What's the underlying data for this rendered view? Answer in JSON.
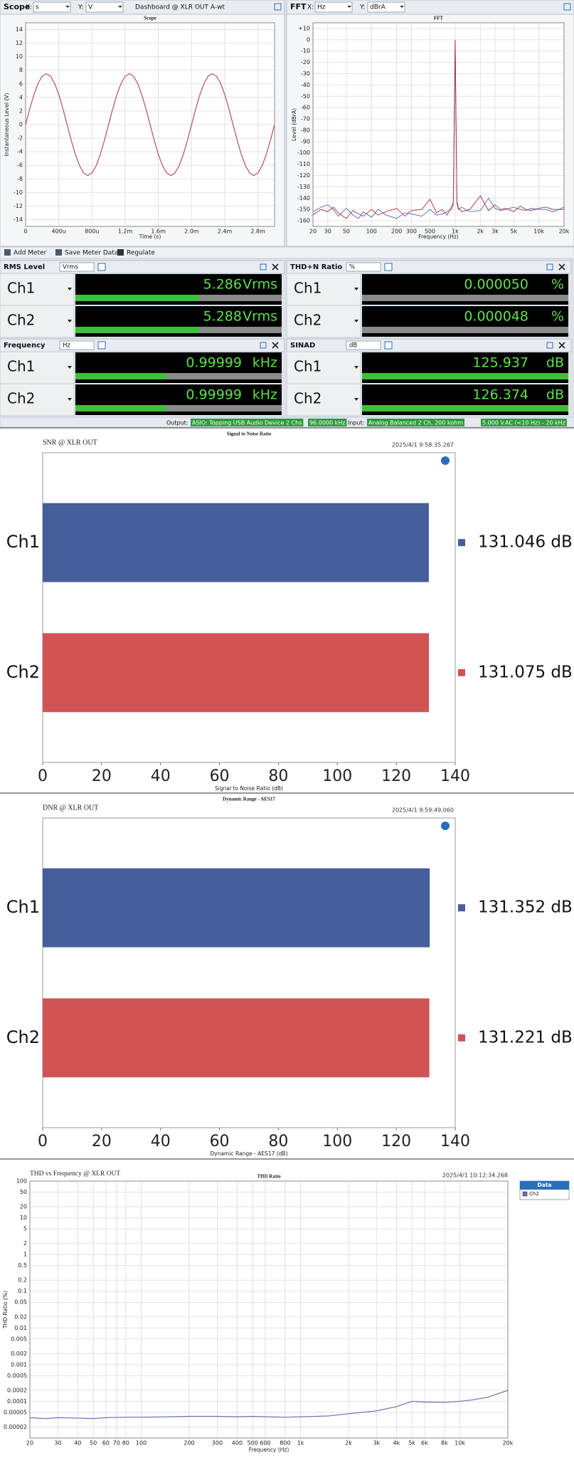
{
  "scope_header": {
    "title": "Scope",
    "x_label": "X:",
    "x_unit": "s",
    "y_label": "Y:",
    "y_unit": "V",
    "dashboard": "Dashboard @ XLR OUT A-wt"
  },
  "fft_header": {
    "title": "FFT",
    "x_label": "X:",
    "x_unit": "Hz",
    "y_label": "Y:",
    "y_unit": "dBrA"
  },
  "toolbar": [
    "Add Meter",
    "Save Meter Data",
    "Regulate"
  ],
  "meters": [
    {
      "name": "RMS Level",
      "unit": "Vrms",
      "rows": [
        {
          "channel": "Ch1",
          "value": "5.286",
          "unit": "Vrms"
        },
        {
          "channel": "Ch2",
          "value": "5.288",
          "unit": "Vrms"
        }
      ]
    },
    {
      "name": "THD+N Ratio",
      "unit": "%",
      "rows": [
        {
          "channel": "Ch1",
          "value": "0.000050",
          "unit": "%"
        },
        {
          "channel": "Ch2",
          "value": "0.000048",
          "unit": "%"
        }
      ]
    },
    {
      "name": "Frequency",
      "unit": "Hz",
      "rows": [
        {
          "channel": "Ch1",
          "value": "0.99999",
          "unit": "kHz"
        },
        {
          "channel": "Ch2",
          "value": "0.99999",
          "unit": "kHz"
        }
      ]
    },
    {
      "name": "SINAD",
      "unit": "dB",
      "rows": [
        {
          "channel": "Ch1",
          "value": "125.937",
          "unit": "dB"
        },
        {
          "channel": "Ch2",
          "value": "126.374",
          "unit": "dB"
        }
      ]
    }
  ],
  "status": {
    "output_label": "Output:",
    "output": "ASIO: Topping USB Audio Device 2 Chs",
    "output_rate": "96.0000 kHz",
    "input_label": "Input:",
    "input": "Analog Balanced 2 Ch, 200 kohm",
    "input_range": "5.000 Vrms",
    "input_filter": "AC (<10 Hz) - 20 kHz"
  },
  "chart_data": [
    {
      "type": "line",
      "title": "Scope",
      "x_label": "Time (s)",
      "y_label": "Instantaneous Level (V)",
      "color": "#b5505e",
      "grid": true,
      "x": [
        0,
        5e-05,
        0.0001,
        0.00015,
        0.0002,
        0.00025,
        0.0003,
        0.00035,
        0.0004,
        0.00045,
        0.0005,
        0.00055,
        0.0006,
        0.00065,
        0.0007,
        0.00075,
        0.0008,
        0.00085,
        0.0009,
        0.00095,
        0.001,
        0.00105,
        0.0011,
        0.00115,
        0.0012,
        0.00125,
        0.0013,
        0.00135,
        0.0014,
        0.00145,
        0.0015,
        0.00155,
        0.0016,
        0.00165,
        0.0017,
        0.00175,
        0.0018,
        0.00185,
        0.0019,
        0.00195,
        0.002,
        0.00205,
        0.0021,
        0.00215,
        0.0022,
        0.00225,
        0.0023,
        0.00235,
        0.0024,
        0.00245,
        0.0025,
        0.00255,
        0.0026,
        0.00265,
        0.0027,
        0.00275,
        0.0028,
        0.00285,
        0.0029,
        0.00295,
        0.003
      ],
      "values": [
        0,
        2.32,
        4.41,
        6.07,
        7.13,
        7.5,
        7.13,
        6.07,
        4.41,
        2.32,
        0,
        -2.32,
        -4.41,
        -6.07,
        -7.13,
        -7.5,
        -7.13,
        -6.07,
        -4.41,
        -2.32,
        0,
        2.32,
        4.41,
        6.07,
        7.13,
        7.5,
        7.13,
        6.07,
        4.41,
        2.32,
        0,
        -2.32,
        -4.41,
        -6.07,
        -7.13,
        -7.5,
        -7.13,
        -6.07,
        -4.41,
        -2.32,
        0,
        2.32,
        4.41,
        6.07,
        7.13,
        7.5,
        7.13,
        6.07,
        4.41,
        2.32,
        0,
        -2.32,
        -4.41,
        -6.07,
        -7.13,
        -7.5,
        -7.13,
        -6.07,
        -4.41,
        -2.32,
        0
      ],
      "xlim": [
        0,
        0.003
      ],
      "ylim": [
        -15,
        15
      ],
      "xticks": [
        0,
        {
          "value": 0.0004,
          "label": "400u"
        },
        {
          "value": 0.0008,
          "label": "800u"
        },
        {
          "value": 0.0012,
          "label": "1.2m"
        },
        {
          "value": 0.0016,
          "label": "1.6m"
        },
        {
          "value": 0.002,
          "label": "2.0m"
        },
        {
          "value": 0.0024,
          "label": "2.4m"
        },
        {
          "value": 0.0028,
          "label": "2.8m"
        }
      ],
      "yticks": [
        14,
        12,
        10,
        8,
        6,
        4,
        2,
        0,
        -2,
        -4,
        -6,
        -8,
        -10,
        -12,
        -14
      ]
    },
    {
      "type": "line",
      "title": "FFT",
      "x_label": "Frequency (Hz)",
      "y_label": "Level (dBrA)",
      "xscale": "log",
      "grid": true,
      "x": [
        20,
        25,
        30,
        35,
        40,
        50,
        60,
        70,
        80,
        100,
        120,
        150,
        200,
        250,
        300,
        400,
        500,
        600,
        700,
        800,
        900,
        950,
        1000,
        1050,
        1100,
        1200,
        1500,
        2000,
        2500,
        3000,
        3500,
        4000,
        5000,
        6000,
        7000,
        8000,
        10000,
        12000,
        15000,
        20000
      ],
      "series": [
        {
          "color": "#4a64b8",
          "values": [
            -152,
            -148,
            -146,
            -150,
            -156,
            -149,
            -155,
            -158,
            -152,
            -157,
            -150,
            -155,
            -158,
            -153,
            -154,
            -156,
            -150,
            -155,
            -154,
            -152,
            -150,
            -146,
            0,
            -145,
            -150,
            -148,
            -152,
            -151,
            -140,
            -149,
            -151,
            -150,
            -148,
            -150,
            -151,
            -149,
            -150,
            -150,
            -152,
            -148
          ]
        },
        {
          "color": "#b0303c",
          "values": [
            -155,
            -150,
            -152,
            -148,
            -153,
            -158,
            -151,
            -154,
            -156,
            -150,
            -155,
            -152,
            -149,
            -156,
            -151,
            -150,
            -141,
            -153,
            -150,
            -155,
            -148,
            -144,
            0,
            -143,
            -149,
            -152,
            -150,
            -138,
            -151,
            -146,
            -150,
            -149,
            -152,
            -147,
            -150,
            -151,
            -149,
            -148,
            -150,
            -150
          ]
        }
      ],
      "xlim": [
        20,
        20000
      ],
      "ylim": [
        -165,
        15
      ],
      "xticks": [
        20,
        30,
        50,
        100,
        200,
        300,
        500,
        {
          "value": 1000,
          "label": "1k"
        },
        {
          "value": 2000,
          "label": "2k"
        },
        {
          "value": 3000,
          "label": "3k"
        },
        {
          "value": 5000,
          "label": "5k"
        },
        {
          "value": 10000,
          "label": "10k"
        },
        {
          "value": 20000,
          "label": "20k"
        }
      ],
      "yticks": [
        {
          "value": 10,
          "label": "+10"
        },
        0,
        -10,
        -20,
        -30,
        -40,
        -50,
        -60,
        -70,
        -80,
        -90,
        -100,
        -110,
        -120,
        -130,
        -140,
        -150,
        -160
      ]
    },
    {
      "type": "bar",
      "title": "Signal to Noise Ratio",
      "subtitle": "SNR @ XLR OUT",
      "timestamp": "2025/4/1 9:58:35.267",
      "x_label": "Signal to Noise Ratio (dB)",
      "grid": false,
      "categories": [
        "Ch1",
        "Ch2"
      ],
      "values": [
        131.046,
        131.075
      ],
      "value_labels": [
        "131.046 dB",
        "131.075 dB"
      ],
      "colors": [
        "#475e9c",
        "#d05454"
      ],
      "xlim": [
        0,
        140
      ],
      "xticks": [
        0,
        20,
        40,
        60,
        80,
        100,
        120,
        140
      ]
    },
    {
      "type": "bar",
      "title": "Dynamic Range - AES17",
      "subtitle": "DNR @ XLR  OUT",
      "timestamp": "2025/4/1 9:59:49.060",
      "x_label": "Dynamic Range - AES17 (dB)",
      "grid": false,
      "categories": [
        "Ch1",
        "Ch2"
      ],
      "values": [
        131.352,
        131.221
      ],
      "value_labels": [
        "131.352 dB",
        "131.221 dB"
      ],
      "colors": [
        "#475e9c",
        "#d05454"
      ],
      "xlim": [
        0,
        140
      ],
      "xticks": [
        0,
        20,
        40,
        60,
        80,
        100,
        120,
        140
      ]
    },
    {
      "type": "line",
      "title": "THD Ratio",
      "subtitle": "THD vs Frequency @ XLR OUT",
      "timestamp": "2025/4/1 10:12:34.268",
      "x_label": "Frequency (Hz)",
      "y_label": "THD Ratio (%)",
      "xscale": "log",
      "yscale": "log",
      "grid": true,
      "legend": "right",
      "legend_title": "Data",
      "x": [
        20,
        25,
        30,
        40,
        50,
        60,
        80,
        100,
        150,
        200,
        300,
        400,
        500,
        600,
        800,
        1000,
        1500,
        2000,
        3000,
        4000,
        5000,
        6000,
        8000,
        10000,
        12000,
        15000,
        20000
      ],
      "series": [
        {
          "name": "Ch2",
          "color": "#6a6cb0",
          "values": [
            3.6e-05,
            3.4e-05,
            3.6e-05,
            3.5e-05,
            3.4e-05,
            3.6e-05,
            3.7e-05,
            3.7e-05,
            3.8e-05,
            3.9e-05,
            3.9e-05,
            3.8e-05,
            3.9e-05,
            3.8e-05,
            3.7e-05,
            3.8e-05,
            4e-05,
            4.6e-05,
            5.5e-05,
            7.2e-05,
            0.0001,
            9.6e-05,
            9.4e-05,
            0.0001,
            0.00011,
            0.00013,
            0.0002
          ]
        }
      ],
      "xlim": [
        20,
        20000
      ],
      "ylim": [
        1e-05,
        100
      ],
      "xticks": [
        20,
        30,
        40,
        50,
        60,
        70,
        80,
        100,
        200,
        300,
        400,
        500,
        600,
        800,
        {
          "value": 1000,
          "label": "1k"
        },
        {
          "value": 2000,
          "label": "2k"
        },
        {
          "value": 3000,
          "label": "3k"
        },
        {
          "value": 4000,
          "label": "4k"
        },
        {
          "value": 5000,
          "label": "5k"
        },
        {
          "value": 6000,
          "label": "6k"
        },
        {
          "value": 8000,
          "label": "8k"
        },
        {
          "value": 10000,
          "label": "10k"
        },
        {
          "value": 20000,
          "label": "20k"
        }
      ],
      "yticks": [
        100,
        50,
        20,
        10,
        5,
        2,
        1,
        0.5,
        0.2,
        0.1,
        0.05,
        0.02,
        0.01,
        0.005,
        0.002,
        0.001,
        0.0005,
        0.0002,
        0.0001,
        5e-05,
        2e-05
      ]
    }
  ]
}
